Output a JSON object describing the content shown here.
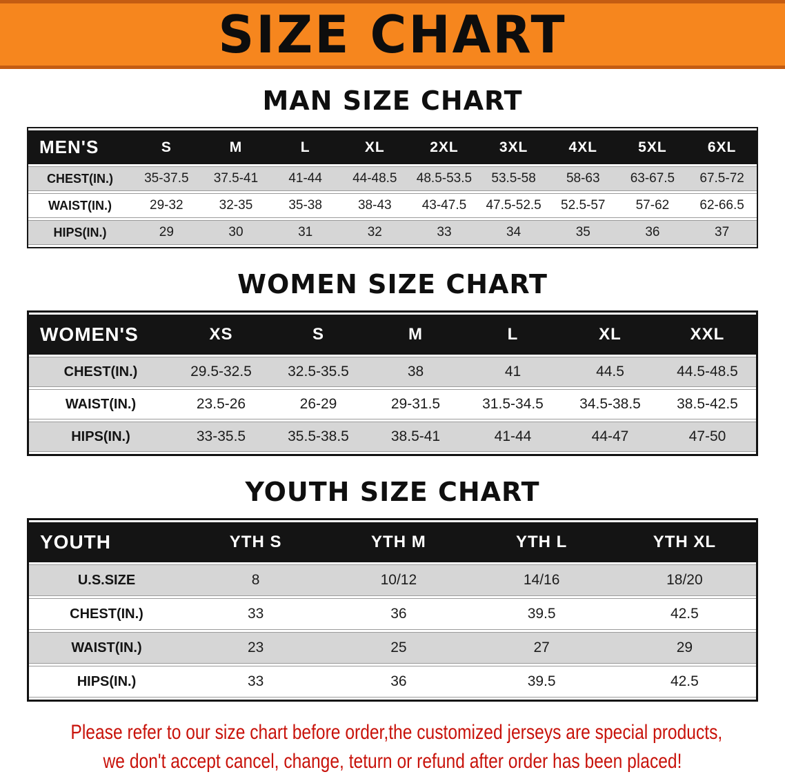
{
  "banner": {
    "title": "SIZE CHART"
  },
  "colors": {
    "banner_bg": "#f6861e",
    "banner_edge": "#c45c12",
    "header_bg": "#141414",
    "row_shade": "#d6d6d6",
    "footer_red": "#c8120a"
  },
  "sections": [
    {
      "heading": "MAN SIZE CHART",
      "table": {
        "title": "MEN'S",
        "columns": [
          "S",
          "M",
          "L",
          "XL",
          "2XL",
          "3XL",
          "4XL",
          "5XL",
          "6XL"
        ],
        "rows": [
          {
            "label": "CHEST(IN.)",
            "values": [
              "35-37.5",
              "37.5-41",
              "41-44",
              "44-48.5",
              "48.5-53.5",
              "53.5-58",
              "58-63",
              "63-67.5",
              "67.5-72"
            ]
          },
          {
            "label": "WAIST(IN.)",
            "values": [
              "29-32",
              "32-35",
              "35-38",
              "38-43",
              "43-47.5",
              "47.5-52.5",
              "52.5-57",
              "57-62",
              "62-66.5"
            ]
          },
          {
            "label": "HIPS(IN.)",
            "values": [
              "29",
              "30",
              "31",
              "32",
              "33",
              "34",
              "35",
              "36",
              "37"
            ]
          }
        ]
      }
    },
    {
      "heading": "WOMEN SIZE CHART",
      "table": {
        "title": "WOMEN'S",
        "columns": [
          "XS",
          "S",
          "M",
          "L",
          "XL",
          "XXL"
        ],
        "rows": [
          {
            "label": "CHEST(IN.)",
            "values": [
              "29.5-32.5",
              "32.5-35.5",
              "38",
              "41",
              "44.5",
              "44.5-48.5"
            ]
          },
          {
            "label": "WAIST(IN.)",
            "values": [
              "23.5-26",
              "26-29",
              "29-31.5",
              "31.5-34.5",
              "34.5-38.5",
              "38.5-42.5"
            ]
          },
          {
            "label": "HIPS(IN.)",
            "values": [
              "33-35.5",
              "35.5-38.5",
              "38.5-41",
              "41-44",
              "44-47",
              "47-50"
            ]
          }
        ]
      }
    },
    {
      "heading": "YOUTH SIZE CHART",
      "table": {
        "title": "YOUTH",
        "columns": [
          "YTH S",
          "YTH M",
          "YTH L",
          "YTH XL"
        ],
        "rows": [
          {
            "label": "U.S.SIZE",
            "values": [
              "8",
              "10/12",
              "14/16",
              "18/20"
            ]
          },
          {
            "label": "CHEST(IN.)",
            "values": [
              "33",
              "36",
              "39.5",
              "42.5"
            ]
          },
          {
            "label": "WAIST(IN.)",
            "values": [
              "23",
              "25",
              "27",
              "29"
            ]
          },
          {
            "label": "HIPS(IN.)",
            "values": [
              "33",
              "36",
              "39.5",
              "42.5"
            ]
          }
        ]
      }
    }
  ],
  "footer": {
    "line1": "Please refer to our size chart before order,the customized jerseys are special products,",
    "line2": "we don't accept cancel, change, teturn or refund after order has been placed!"
  }
}
